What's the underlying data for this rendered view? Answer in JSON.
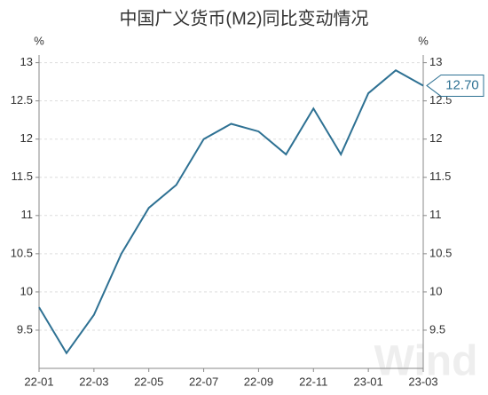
{
  "chart_data": {
    "type": "line",
    "title": "中国广义货币(M2)同比变动情况",
    "y_unit": "%",
    "categories": [
      "22-01",
      null,
      "22-03",
      null,
      "22-05",
      null,
      "22-07",
      null,
      "22-09",
      null,
      "22-11",
      null,
      "23-01",
      null,
      "23-03"
    ],
    "series": [
      {
        "name": "M2同比",
        "color": "#2e7193",
        "values": [
          9.8,
          9.2,
          9.7,
          10.5,
          11.1,
          11.4,
          12.0,
          12.2,
          12.1,
          11.8,
          12.4,
          11.8,
          12.6,
          12.9,
          12.7
        ],
        "value_labels": [
          null,
          null,
          null,
          null,
          null,
          null,
          null,
          null,
          null,
          null,
          null,
          null,
          null,
          null,
          "12.70"
        ]
      }
    ],
    "ylim": [
      9,
      13.1
    ],
    "yticks": [
      9.5,
      10,
      10.5,
      11,
      11.5,
      12,
      12.5,
      13
    ],
    "grid": true,
    "watermark": "Wind"
  }
}
